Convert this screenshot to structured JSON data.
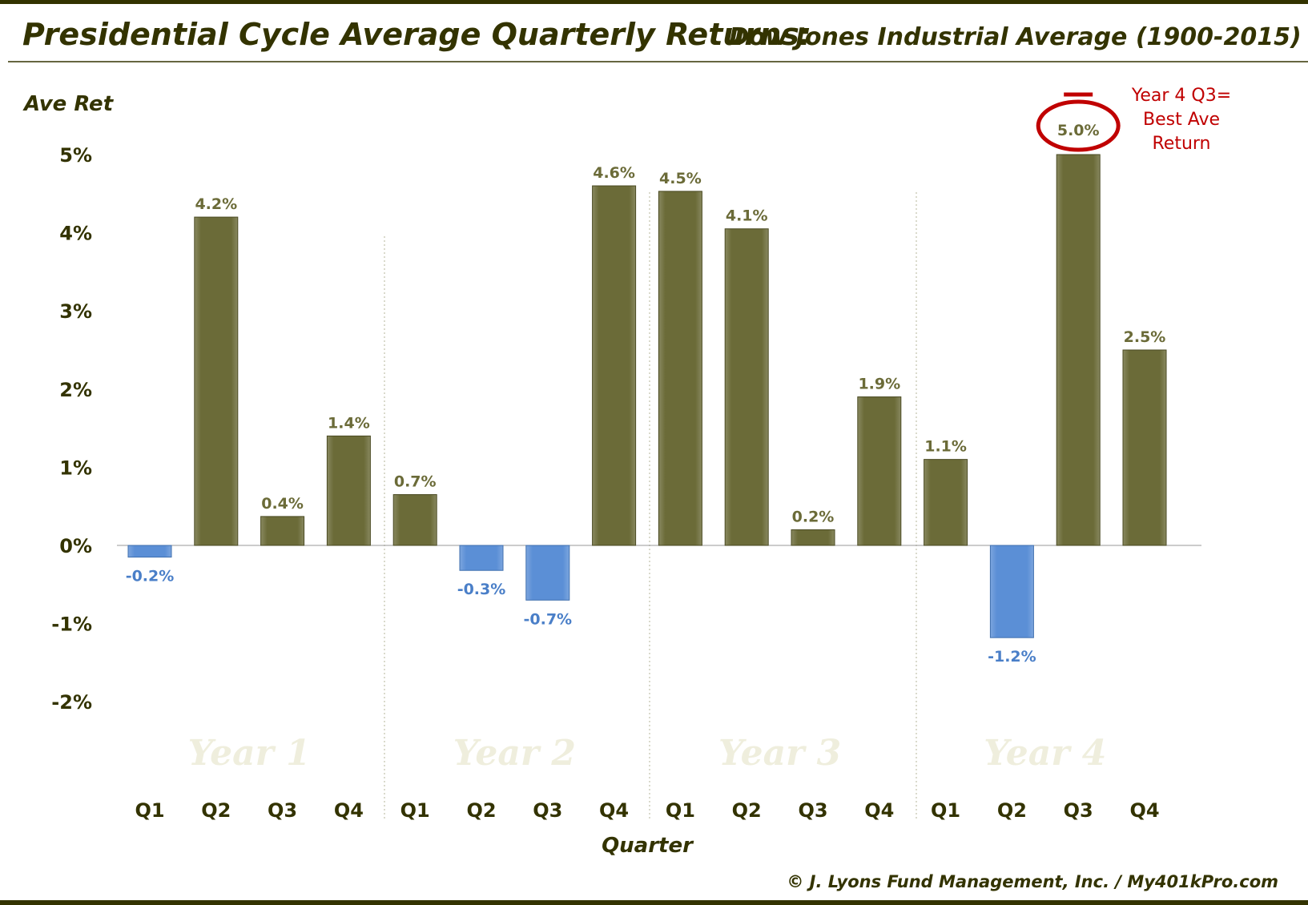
{
  "title": "Presidential Cycle Average Quarterly Returns:",
  "subtitle": "Dow Jones Industrial Average (1900-2015)",
  "footer": "© J. Lyons Fund Management, Inc. / My401kPro.com",
  "annotation": {
    "lines": [
      "Year 4 Q3=",
      "Best Ave",
      "Return"
    ],
    "color": "#c00000"
  },
  "colors": {
    "positive": "#6b6b38",
    "negative": "#5b8fd6",
    "positive_label": "#6b6b38",
    "negative_label": "#4a7fc8",
    "frame": "#333300"
  },
  "chart_data": {
    "type": "bar",
    "ylabel": "Ave Ret",
    "xlabel": "Quarter",
    "ylim": [
      -2,
      5
    ],
    "yticks": [
      "5%",
      "4%",
      "3%",
      "2%",
      "1%",
      "0%",
      "-1%",
      "-2%"
    ],
    "ytick_values": [
      5,
      4,
      3,
      2,
      1,
      0,
      -1,
      -2
    ],
    "groups": [
      "Year 1",
      "Year 2",
      "Year 3",
      "Year 4"
    ],
    "categories": [
      "Q1",
      "Q2",
      "Q3",
      "Q4",
      "Q1",
      "Q2",
      "Q3",
      "Q4",
      "Q1",
      "Q2",
      "Q3",
      "Q4",
      "Q1",
      "Q2",
      "Q3",
      "Q4"
    ],
    "values": [
      -0.15,
      4.2,
      0.37,
      1.4,
      0.65,
      -0.32,
      -0.7,
      4.6,
      4.53,
      4.05,
      0.2,
      1.9,
      1.1,
      -1.18,
      5.0,
      2.5
    ],
    "labels": [
      "-0.2%",
      "4.2%",
      "0.4%",
      "1.4%",
      "0.7%",
      "-0.3%",
      "-0.7%",
      "4.6%",
      "4.5%",
      "4.1%",
      "0.2%",
      "1.9%",
      "1.1%",
      "-1.2%",
      "5.0%",
      "2.5%"
    ],
    "highlight_index": 14,
    "grid": false,
    "legend": "none"
  }
}
